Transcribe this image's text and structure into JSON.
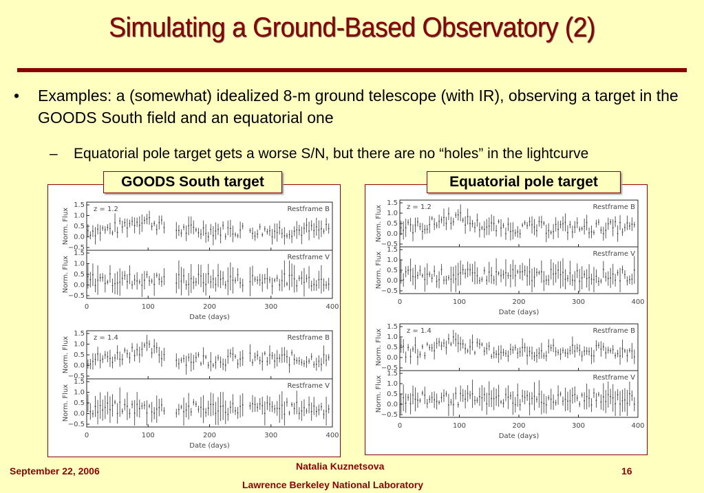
{
  "slide": {
    "title": "Simulating a Ground-Based Observatory (2)",
    "bullet_marker": "•",
    "bullet1": "Examples: a (somewhat) idealized 8-m ground telescope (with IR), observing a target in the GOODS South field and an equatorial one",
    "sub_marker": "–",
    "bullet2": "Equatorial pole target gets a worse S/N, but there are no “holes” in the lightcurve",
    "left_label": "GOODS South target",
    "right_label": "Equatorial pole target"
  },
  "footer": {
    "date": "September 22, 2006",
    "author": "Natalia Kuznetsova",
    "org": "Lawrence Berkeley National Laboratory",
    "page": "16"
  },
  "colors": {
    "title": "#8b0000",
    "background": "#ffffc0"
  },
  "chart_data": [
    {
      "type": "scatter",
      "panel": "GOODS South target",
      "redshift_label": "z = 1.2",
      "top_label": "Restframe B",
      "bottom_label": "Restframe V",
      "ylabel_top": "Norm. Flux",
      "ylabel_bottom": "Norm. Flux",
      "xlabel": "Date (days)",
      "xlim": [
        0,
        400
      ],
      "ylim": [
        -0.5,
        1.5
      ],
      "xticks": [
        "0",
        "100",
        "200",
        "300",
        "400"
      ],
      "yticks": [
        "1.5",
        "1.0",
        "0.5",
        "0.0",
        "−0.5"
      ],
      "gaps": [
        [
          130,
          145
        ],
        [
          255,
          265
        ]
      ]
    },
    {
      "type": "scatter",
      "panel": "GOODS South target",
      "redshift_label": "z = 1.4",
      "top_label": "Restframe B",
      "bottom_label": "Restframe V",
      "ylabel_top": "Norm. Flux",
      "ylabel_bottom": "Norm. Flux",
      "xlabel": "Date (days)",
      "xlim": [
        0,
        400
      ],
      "ylim": [
        -0.5,
        1.5
      ],
      "xticks": [
        "0",
        "100",
        "200",
        "300",
        "400"
      ],
      "yticks": [
        "1.5",
        "1.0",
        "0.5",
        "0.0",
        "−0.5"
      ],
      "gaps": [
        [
          130,
          145
        ],
        [
          255,
          265
        ]
      ]
    },
    {
      "type": "scatter",
      "panel": "Equatorial pole target",
      "redshift_label": "z = 1.2",
      "top_label": "Restframe B",
      "bottom_label": "Restframe V",
      "ylabel_top": "Norm. Flux",
      "ylabel_bottom": "Norm. Flux",
      "xlabel": "Date (days)",
      "xlim": [
        0,
        400
      ],
      "ylim": [
        -0.5,
        1.5
      ],
      "xticks": [
        "0",
        "100",
        "200",
        "300",
        "400"
      ],
      "yticks": [
        "1.5",
        "1.0",
        "0.5",
        "0.0",
        "−0.5"
      ],
      "gaps": []
    },
    {
      "type": "scatter",
      "panel": "Equatorial pole target",
      "redshift_label": "z = 1.4",
      "top_label": "Restframe B",
      "bottom_label": "Restframe V",
      "ylabel_top": "Norm. Flux",
      "ylabel_bottom": "Norm. Flux",
      "xlabel": "Date (days)",
      "xlim": [
        0,
        400
      ],
      "ylim": [
        -0.5,
        1.5
      ],
      "xticks": [
        "0",
        "100",
        "200",
        "300",
        "400"
      ],
      "yticks": [
        "1.5",
        "1.0",
        "0.5",
        "0.0",
        "−0.5"
      ],
      "gaps": []
    }
  ]
}
